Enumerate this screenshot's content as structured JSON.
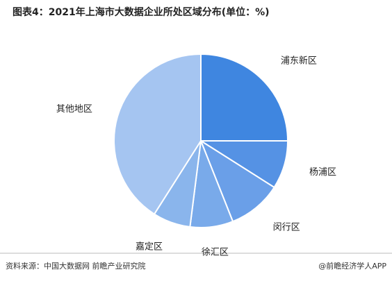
{
  "chart_data": {
    "type": "pie",
    "title": "图表4：2021年上海市大数据企业所处区域分布(单位：%)",
    "categories": [
      "浦东新区",
      "杨浦区",
      "闵行区",
      "徐汇区",
      "嘉定区",
      "其他地区"
    ],
    "values": [
      25,
      9,
      10,
      8,
      7,
      41
    ],
    "colors": [
      "#3f86e0",
      "#5592e4",
      "#6a9fe8",
      "#79aaea",
      "#8ab5ec",
      "#a5c5f1"
    ],
    "source": "资料来源：中国大数据网 前瞻产业研究院",
    "credit": "@前瞻经济学人APP"
  }
}
